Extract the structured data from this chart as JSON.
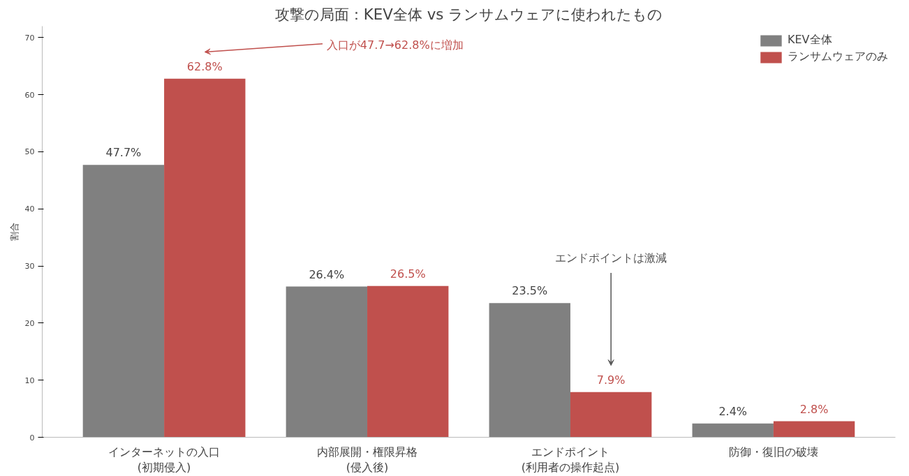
{
  "chart_data": {
    "type": "bar",
    "title": "攻撃の局面：KEV全体 vs ランサムウェアに使われたもの",
    "ylabel": "割合",
    "categories": [
      "インターネットの入口\n(初期侵入)",
      "内部展開・権限昇格\n(侵入後)",
      "エンドポイント\n(利用者の操作起点)",
      "防御・復旧の破壊"
    ],
    "series": [
      {
        "name": "KEV全体",
        "color": "#808080",
        "values": [
          47.7,
          26.4,
          23.5,
          2.4
        ],
        "value_labels": [
          "47.7%",
          "26.4%",
          "23.5%",
          "2.4%"
        ]
      },
      {
        "name": "ランサムウェアのみ",
        "color": "#c0504d",
        "values": [
          62.8,
          26.5,
          7.9,
          2.8
        ],
        "value_labels": [
          "62.8%",
          "26.5%",
          "7.9%",
          "2.8%"
        ]
      }
    ],
    "ylim": [
      0,
      72
    ],
    "yticks": [
      0,
      10,
      20,
      30,
      40,
      50,
      60,
      70
    ],
    "grid": false,
    "legend": "top right",
    "annotations": [
      "入口が47.7→62.8%に増加",
      "エンドポイントは激減"
    ]
  }
}
